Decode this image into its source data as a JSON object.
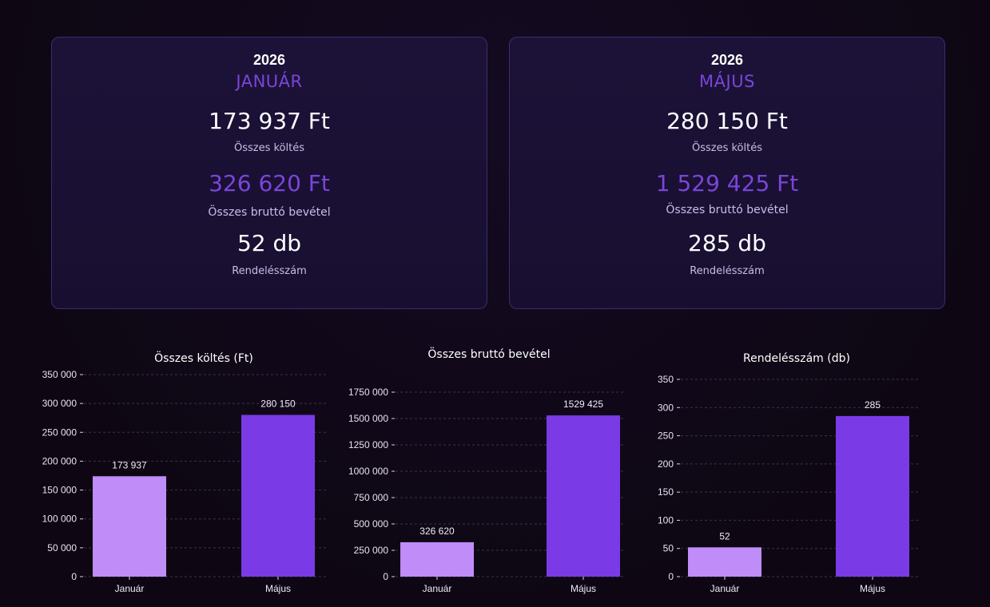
{
  "cards": [
    {
      "year": "2026",
      "month": "JANUÁR",
      "spend_value": "173 937 Ft",
      "spend_label": "Összes költés",
      "revenue_value": "326 620 Ft",
      "revenue_label": "Összes bruttó bevétel",
      "orders_value": "52 db",
      "orders_label": "Rendelésszám"
    },
    {
      "year": "2026",
      "month": "MÁJUS",
      "spend_value": "280 150 Ft",
      "spend_label": "Összes költés",
      "revenue_value": "1 529 425 Ft",
      "revenue_label": "Összes bruttó bevétel",
      "orders_value": "285 db",
      "orders_label": "Rendelésszám"
    }
  ],
  "colors": {
    "accent": "#7a45d9",
    "bar_january": "#c08cf7",
    "bar_may": "#7a3be6",
    "background": "#0e0713",
    "card_border": "#3a2d6e"
  },
  "chart_data": [
    {
      "type": "bar",
      "title": "Összes költés (Ft)",
      "categories": [
        "Január",
        "Május"
      ],
      "values": [
        173937,
        280150
      ],
      "value_labels": [
        "173 937",
        "280 150"
      ],
      "yticks": [
        0,
        50000,
        100000,
        150000,
        200000,
        250000,
        300000,
        350000
      ],
      "ytick_labels": [
        "0",
        "50 000",
        "100 000",
        "150 000",
        "200 000",
        "250 000",
        "300 000",
        "350 000"
      ],
      "ylim": [
        0,
        350000
      ],
      "grid": true
    },
    {
      "type": "bar",
      "title": "Összes bruttó bevétel",
      "categories": [
        "Január",
        "Május"
      ],
      "values": [
        326620,
        1529425
      ],
      "value_labels": [
        "326 620",
        "1529 425"
      ],
      "yticks": [
        0,
        250000,
        500000,
        750000,
        1000000,
        1250000,
        1500000,
        1750000
      ],
      "ytick_labels": [
        "0",
        "250 000",
        "500 000",
        "750 000",
        "1000 000",
        "1250 000",
        "1500 000",
        "1750 000"
      ],
      "ylim": [
        0,
        1750000
      ],
      "grid": true
    },
    {
      "type": "bar",
      "title": "Rendelésszám (db)",
      "categories": [
        "Január",
        "Május"
      ],
      "values": [
        52,
        285
      ],
      "value_labels": [
        "52",
        "285"
      ],
      "yticks": [
        0,
        50,
        100,
        150,
        200,
        250,
        300,
        350
      ],
      "ytick_labels": [
        "0",
        "50",
        "100",
        "150",
        "200",
        "250",
        "300",
        "350"
      ],
      "ylim": [
        0,
        350
      ],
      "grid": true
    }
  ]
}
